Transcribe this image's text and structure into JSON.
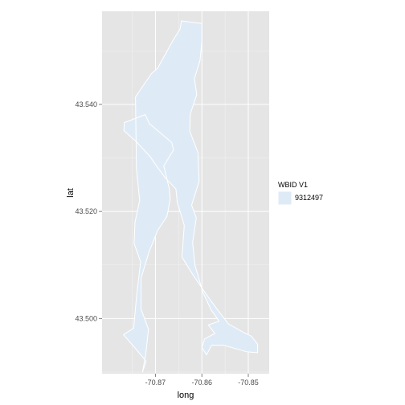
{
  "chart_data": {
    "type": "map",
    "title": "",
    "xlabel": "long",
    "ylabel": "lat",
    "xlim": [
      -70.8815,
      -70.8455
    ],
    "ylim": [
      43.4897,
      43.5574
    ],
    "x_ticks": [
      -70.87,
      -70.86,
      -70.85
    ],
    "x_tick_labels": [
      "-70.87",
      "-70.86",
      "-70.85"
    ],
    "y_ticks": [
      43.5,
      43.52,
      43.54
    ],
    "y_tick_labels": [
      "43.500",
      "43.520",
      "43.540"
    ],
    "grid": true,
    "legend": {
      "title": "WBID V1",
      "entries": [
        {
          "label": "9312497"
        }
      ],
      "position": "right"
    },
    "colors": {
      "panel": "#e5e5e5",
      "grid": "#ffffff",
      "fill": "#deebf7",
      "outline": "#ffffff"
    },
    "polygon": {
      "name": "9312497",
      "long": [
        -70.8644,
        -70.8634,
        -70.86,
        -70.86,
        -70.8604,
        -70.8616,
        -70.8611,
        -70.8625,
        -70.8626,
        -70.8608,
        -70.8606,
        -70.8622,
        -70.8612,
        -70.862,
        -70.8615,
        -70.8598,
        -70.858,
        -70.8563,
        -70.8586,
        -70.8572,
        -70.8594,
        -70.86,
        -70.859,
        -70.8579,
        -70.8553,
        -70.8504,
        -70.848,
        -70.848,
        -70.8493,
        -70.851,
        -70.8543,
        -70.8564,
        -70.8583,
        -70.8618,
        -70.8643,
        -70.8638,
        -70.8653,
        -70.8656,
        -70.8679,
        -70.87,
        -70.8711,
        -70.8742,
        -70.8768,
        -70.8767,
        -70.8722,
        -70.8713,
        -70.8665,
        -70.8661,
        -70.8682,
        -70.867,
        -70.8668,
        -70.8675,
        -70.8695,
        -70.8714,
        -70.8731,
        -70.8731,
        -70.8715,
        -70.8721,
        -70.8728,
        -70.872,
        -70.8744,
        -70.8769,
        -70.8747,
        -70.874,
        -70.8732,
        -70.8746,
        -70.8744,
        -70.8734,
        -70.8741,
        -70.8743,
        -70.8709,
        -70.8695,
        -70.8687,
        -70.8662,
        -70.8647
      ],
      "lat": [
        43.5556,
        43.5555,
        43.5551,
        43.5518,
        43.5482,
        43.5448,
        43.5418,
        43.5382,
        43.535,
        43.5309,
        43.5256,
        43.5212,
        43.5188,
        43.5142,
        43.51,
        43.5049,
        43.5016,
        43.4995,
        43.4988,
        43.4972,
        43.4962,
        43.4946,
        43.4932,
        43.495,
        43.495,
        43.4938,
        43.4936,
        43.4952,
        43.4967,
        43.4974,
        43.499,
        43.5014,
        43.5036,
        43.508,
        43.5115,
        43.5174,
        43.5217,
        43.5242,
        43.5263,
        43.5288,
        43.5302,
        43.5331,
        43.5351,
        43.5366,
        43.5381,
        43.5364,
        43.5329,
        43.5315,
        43.5285,
        43.5242,
        43.5224,
        43.5191,
        43.5165,
        43.5124,
        43.5075,
        43.5018,
        43.498,
        43.4932,
        43.49,
        43.492,
        43.4945,
        43.497,
        43.4982,
        43.5047,
        43.5106,
        43.514,
        43.518,
        43.5221,
        43.5279,
        43.5414,
        43.5457,
        43.5468,
        43.5481,
        43.552,
        43.5541
      ]
    }
  }
}
